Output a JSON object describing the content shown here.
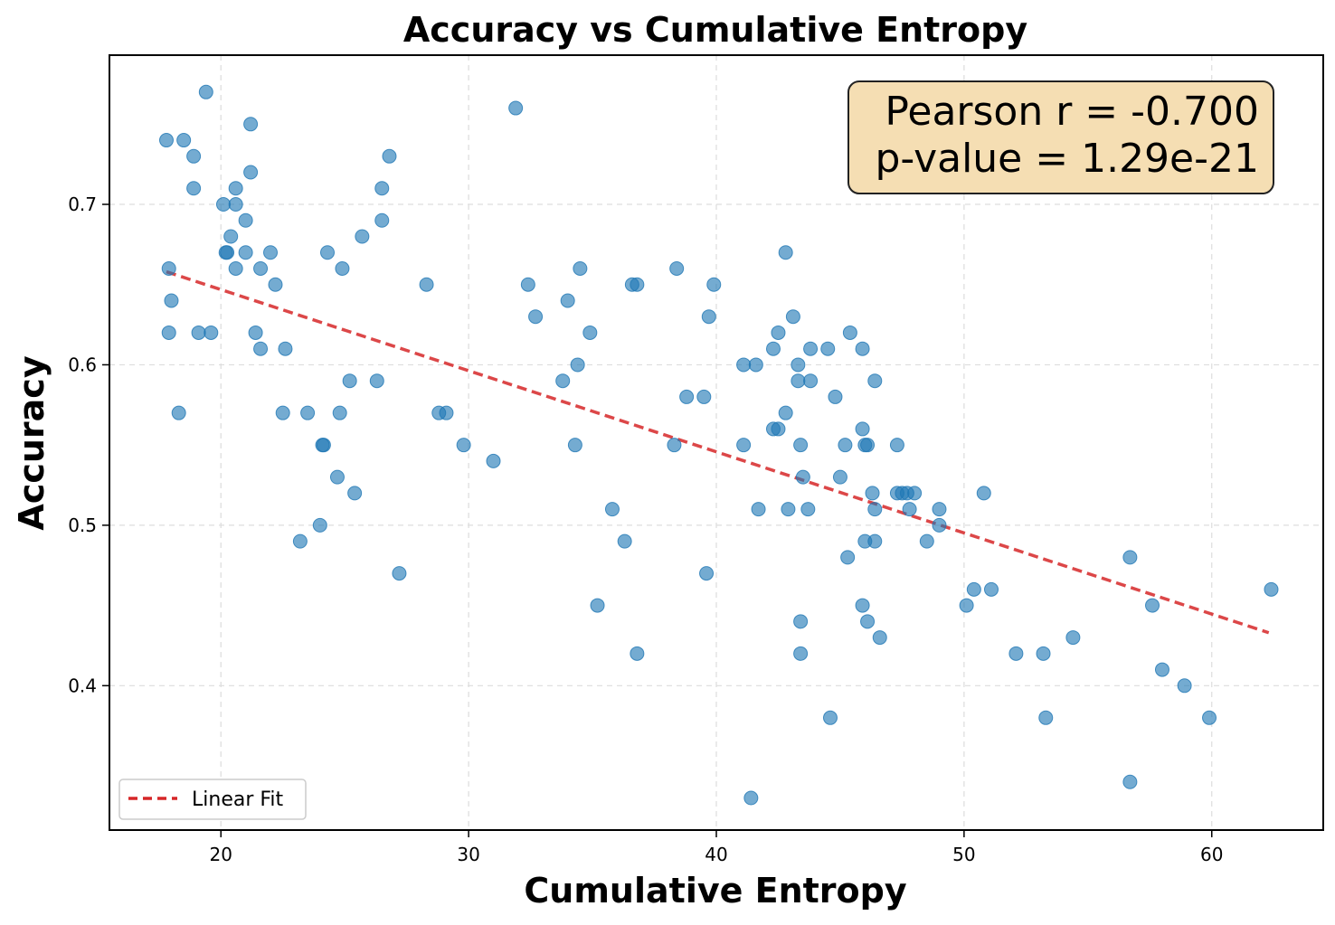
{
  "chart_data": {
    "type": "scatter",
    "title": "Accuracy vs Cumulative Entropy",
    "xlabel": "Cumulative Entropy",
    "ylabel": "Accuracy",
    "xlim": [
      15.5,
      64.5
    ],
    "ylim": [
      0.31,
      0.793
    ],
    "xticks": [
      20,
      30,
      40,
      50,
      60
    ],
    "yticks": [
      0.4,
      0.5,
      0.6,
      0.7
    ],
    "xtick_labels": [
      "20",
      "30",
      "40",
      "50",
      "60"
    ],
    "ytick_labels": [
      "0.4",
      "0.5",
      "0.6",
      "0.7"
    ],
    "grid": true,
    "point_color": "#1f77b4",
    "fit_color": "#d62728",
    "legend": {
      "label": "Linear Fit",
      "location": "lower-left"
    },
    "annotation": {
      "line1": "Pearson r = -0.700",
      "line2": "p-value = 1.29e-21",
      "location": "top-right",
      "box_color": "#f5deb3"
    },
    "fit_line": {
      "x": [
        17.8,
        62.3
      ],
      "y": [
        0.658,
        0.433
      ]
    },
    "points": [
      [
        19.4,
        0.77
      ],
      [
        17.8,
        0.74
      ],
      [
        18.5,
        0.74
      ],
      [
        18.9,
        0.73
      ],
      [
        18.9,
        0.71
      ],
      [
        21.2,
        0.75
      ],
      [
        21.2,
        0.72
      ],
      [
        20.6,
        0.71
      ],
      [
        20.1,
        0.7
      ],
      [
        20.6,
        0.7
      ],
      [
        21.0,
        0.69
      ],
      [
        20.4,
        0.68
      ],
      [
        20.2,
        0.67
      ],
      [
        20.25,
        0.67
      ],
      [
        21.0,
        0.67
      ],
      [
        22.0,
        0.67
      ],
      [
        20.6,
        0.66
      ],
      [
        21.6,
        0.66
      ],
      [
        22.2,
        0.65
      ],
      [
        17.9,
        0.66
      ],
      [
        18.0,
        0.64
      ],
      [
        17.9,
        0.62
      ],
      [
        19.1,
        0.62
      ],
      [
        19.6,
        0.62
      ],
      [
        18.3,
        0.57
      ],
      [
        21.4,
        0.62
      ],
      [
        21.6,
        0.61
      ],
      [
        22.6,
        0.61
      ],
      [
        22.5,
        0.57
      ],
      [
        23.5,
        0.57
      ],
      [
        24.3,
        0.67
      ],
      [
        25.7,
        0.68
      ],
      [
        24.9,
        0.66
      ],
      [
        26.8,
        0.73
      ],
      [
        26.5,
        0.71
      ],
      [
        26.5,
        0.69
      ],
      [
        25.2,
        0.59
      ],
      [
        26.3,
        0.59
      ],
      [
        24.8,
        0.57
      ],
      [
        24.1,
        0.55
      ],
      [
        24.15,
        0.55
      ],
      [
        24.7,
        0.53
      ],
      [
        25.4,
        0.52
      ],
      [
        24.0,
        0.5
      ],
      [
        23.2,
        0.49
      ],
      [
        27.2,
        0.47
      ],
      [
        28.3,
        0.65
      ],
      [
        28.8,
        0.57
      ],
      [
        29.1,
        0.57
      ],
      [
        29.8,
        0.55
      ],
      [
        31.0,
        0.54
      ],
      [
        31.9,
        0.76
      ],
      [
        32.4,
        0.65
      ],
      [
        32.7,
        0.63
      ],
      [
        34.0,
        0.64
      ],
      [
        34.5,
        0.66
      ],
      [
        34.9,
        0.62
      ],
      [
        33.8,
        0.59
      ],
      [
        34.4,
        0.6
      ],
      [
        34.3,
        0.55
      ],
      [
        35.8,
        0.51
      ],
      [
        36.3,
        0.49
      ],
      [
        35.2,
        0.45
      ],
      [
        36.6,
        0.65
      ],
      [
        36.8,
        0.65
      ],
      [
        36.8,
        0.42
      ],
      [
        38.4,
        0.66
      ],
      [
        38.3,
        0.55
      ],
      [
        38.8,
        0.58
      ],
      [
        39.5,
        0.58
      ],
      [
        39.7,
        0.63
      ],
      [
        39.9,
        0.65
      ],
      [
        39.6,
        0.47
      ],
      [
        41.1,
        0.6
      ],
      [
        41.6,
        0.6
      ],
      [
        41.1,
        0.55
      ],
      [
        41.7,
        0.51
      ],
      [
        41.4,
        0.33
      ],
      [
        42.3,
        0.61
      ],
      [
        42.5,
        0.62
      ],
      [
        42.3,
        0.56
      ],
      [
        42.5,
        0.56
      ],
      [
        42.8,
        0.67
      ],
      [
        43.1,
        0.63
      ],
      [
        43.3,
        0.6
      ],
      [
        43.3,
        0.59
      ],
      [
        43.8,
        0.61
      ],
      [
        43.8,
        0.59
      ],
      [
        42.8,
        0.57
      ],
      [
        43.4,
        0.55
      ],
      [
        43.5,
        0.53
      ],
      [
        42.9,
        0.51
      ],
      [
        43.7,
        0.51
      ],
      [
        43.4,
        0.44
      ],
      [
        43.4,
        0.42
      ],
      [
        44.5,
        0.61
      ],
      [
        44.8,
        0.58
      ],
      [
        45.0,
        0.53
      ],
      [
        45.4,
        0.62
      ],
      [
        45.2,
        0.55
      ],
      [
        45.3,
        0.48
      ],
      [
        44.6,
        0.38
      ],
      [
        45.9,
        0.61
      ],
      [
        46.4,
        0.59
      ],
      [
        45.9,
        0.56
      ],
      [
        46.0,
        0.55
      ],
      [
        46.1,
        0.55
      ],
      [
        46.3,
        0.52
      ],
      [
        46.4,
        0.51
      ],
      [
        46.0,
        0.49
      ],
      [
        46.4,
        0.49
      ],
      [
        45.9,
        0.45
      ],
      [
        46.1,
        0.44
      ],
      [
        46.6,
        0.43
      ],
      [
        47.3,
        0.55
      ],
      [
        47.3,
        0.52
      ],
      [
        47.5,
        0.52
      ],
      [
        47.7,
        0.52
      ],
      [
        48.0,
        0.52
      ],
      [
        47.8,
        0.51
      ],
      [
        49.0,
        0.51
      ],
      [
        49.0,
        0.5
      ],
      [
        48.5,
        0.49
      ],
      [
        50.8,
        0.52
      ],
      [
        50.1,
        0.45
      ],
      [
        50.4,
        0.46
      ],
      [
        51.1,
        0.46
      ],
      [
        52.1,
        0.42
      ],
      [
        53.2,
        0.42
      ],
      [
        53.3,
        0.38
      ],
      [
        54.4,
        0.43
      ],
      [
        56.7,
        0.48
      ],
      [
        56.7,
        0.34
      ],
      [
        57.6,
        0.45
      ],
      [
        58.0,
        0.41
      ],
      [
        58.9,
        0.4
      ],
      [
        59.9,
        0.38
      ],
      [
        62.4,
        0.46
      ]
    ]
  }
}
